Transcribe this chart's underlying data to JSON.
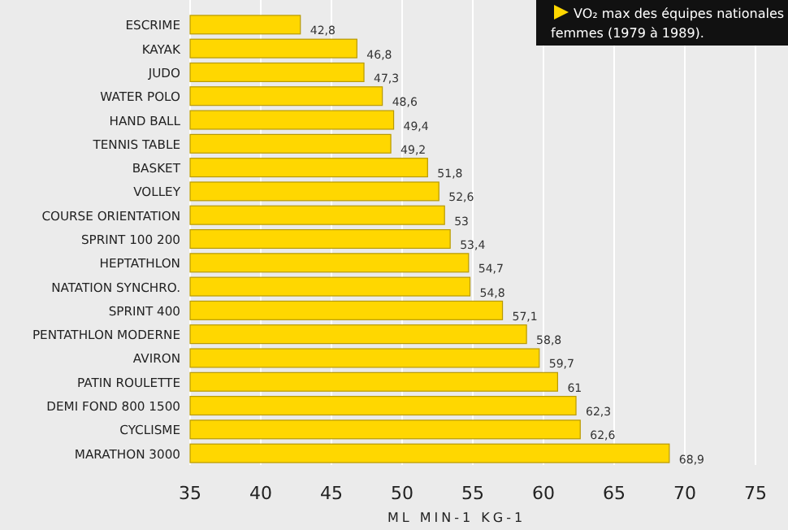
{
  "chart_data": {
    "type": "bar",
    "orientation": "horizontal",
    "title": "VO₂ max des équipes nationales femmes (1979 à 1989).",
    "xlabel": "ML MIN-1 KG-1",
    "categories": [
      "ESCRIME",
      "KAYAK",
      "JUDO",
      "WATER POLO",
      "HAND BALL",
      "TENNIS TABLE",
      "BASKET",
      "VOLLEY",
      "COURSE ORIENTATION",
      "SPRINT 100 200",
      "HEPTATHLON",
      "NATATION SYNCHRO.",
      "SPRINT 400",
      "PENTATHLON MODERNE",
      "AVIRON",
      "PATIN ROULETTE",
      "DEMI FOND 800 1500",
      "CYCLISME",
      "MARATHON 3000"
    ],
    "values": [
      42.8,
      46.8,
      47.3,
      48.6,
      49.4,
      49.2,
      51.8,
      52.6,
      53,
      53.4,
      54.7,
      54.8,
      57.1,
      58.8,
      59.7,
      61,
      62.3,
      62.6,
      68.9
    ],
    "value_labels": [
      "42,8",
      "46,8",
      "47,3",
      "48,6",
      "49,4",
      "49,2",
      "51,8",
      "52,6",
      "53",
      "53,4",
      "54,7",
      "54,8",
      "57,1",
      "58,8",
      "59,7",
      "61",
      "62,3",
      "62,6",
      "68,9"
    ],
    "color": "#ffd700",
    "xlim": [
      35,
      75
    ],
    "xticks": [
      35,
      40,
      45,
      50,
      55,
      60,
      65,
      70,
      75
    ],
    "grid": "x"
  }
}
